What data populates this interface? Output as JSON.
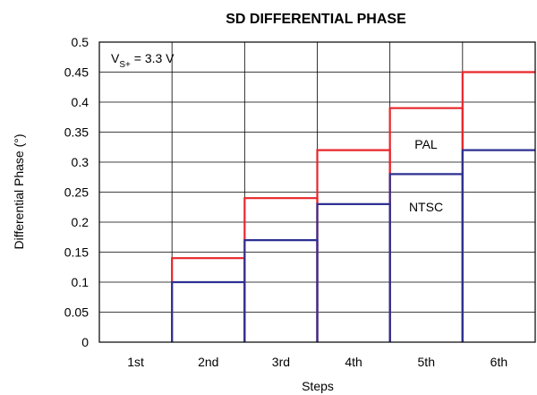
{
  "chart_data": {
    "type": "line",
    "title": "SD DIFFERENTIAL PHASE",
    "xlabel": "Steps",
    "ylabel": "Differential Phase (°)",
    "categories": [
      "1st",
      "2nd",
      "3rd",
      "4th",
      "5th",
      "6th"
    ],
    "ylim": [
      0,
      0.5
    ],
    "yticks": [
      "0",
      "0.05",
      "0.1",
      "0.15",
      "0.2",
      "0.25",
      "0.3",
      "0.35",
      "0.4",
      "0.45",
      "0.5"
    ],
    "grid": true,
    "step": true,
    "series": [
      {
        "name": "PAL",
        "color": "#e8262b",
        "values": [
          0,
          0.14,
          0.24,
          0.32,
          0.39,
          0.45
        ]
      },
      {
        "name": "NTSC",
        "color": "#2e3192",
        "values": [
          0,
          0.1,
          0.17,
          0.23,
          0.28,
          0.32
        ]
      }
    ],
    "annotation": {
      "v": "V",
      "sub": "S+",
      "rest": " = 3.3 V"
    }
  }
}
